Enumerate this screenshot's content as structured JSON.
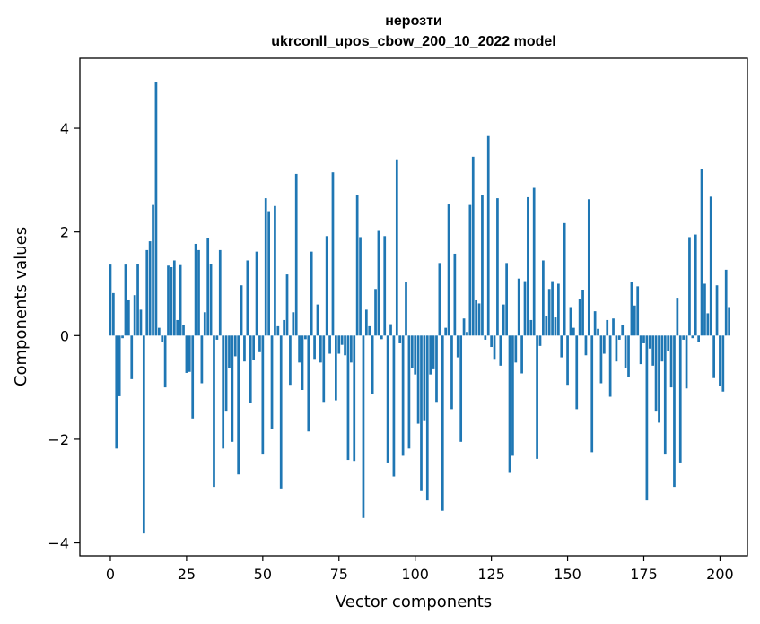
{
  "chart_data": {
    "type": "bar",
    "title": "нерозти",
    "subtitle": "ukrconll_upos_cbow_200_10_2022 model",
    "xlabel": "Vector components",
    "ylabel": "Components values",
    "xlim": [
      -10,
      209
    ],
    "ylim": [
      -4.25,
      5.35
    ],
    "xticks": [
      0,
      25,
      50,
      75,
      100,
      125,
      150,
      175,
      200
    ],
    "xtick_labels": [
      "0",
      "25",
      "50",
      "75",
      "100",
      "125",
      "150",
      "175",
      "200"
    ],
    "yticks": [
      -4,
      -2,
      0,
      2,
      4
    ],
    "ytick_labels": [
      "−4",
      "−2",
      "0",
      "2",
      "4"
    ],
    "grid": false,
    "bar_color": "#1f77b4",
    "values": [
      1.37,
      0.82,
      -2.18,
      -1.17,
      -0.05,
      1.37,
      0.68,
      -0.84,
      0.78,
      1.38,
      0.5,
      -3.82,
      1.65,
      1.82,
      2.52,
      4.9,
      0.15,
      -0.12,
      -1.0,
      1.35,
      1.32,
      1.45,
      0.3,
      1.36,
      0.2,
      -0.72,
      -0.7,
      -1.6,
      1.77,
      1.65,
      -0.92,
      0.45,
      1.88,
      1.38,
      -2.92,
      -0.08,
      1.65,
      -2.18,
      -1.45,
      -0.62,
      -2.05,
      -0.4,
      -2.68,
      0.97,
      -0.5,
      1.45,
      -1.3,
      -0.47,
      1.62,
      -0.32,
      -2.28,
      2.65,
      2.4,
      -1.8,
      2.5,
      0.18,
      -2.95,
      0.3,
      1.18,
      -0.95,
      0.45,
      3.12,
      -0.52,
      -1.05,
      -0.07,
      -1.85,
      1.62,
      -0.45,
      0.6,
      -0.52,
      -1.28,
      1.92,
      -0.35,
      3.15,
      -1.25,
      -0.35,
      -0.18,
      -0.38,
      -2.4,
      -0.52,
      -2.42,
      2.72,
      1.9,
      -3.52,
      0.5,
      0.18,
      -1.12,
      0.9,
      2.02,
      -0.07,
      1.92,
      -2.45,
      0.22,
      -2.72,
      3.4,
      -0.15,
      -2.32,
      1.03,
      -2.18,
      -0.62,
      -0.75,
      -1.7,
      -3.0,
      -1.65,
      -3.18,
      -0.75,
      -0.65,
      -1.28,
      1.4,
      -3.38,
      0.15,
      2.53,
      -1.42,
      1.58,
      -0.42,
      -2.05,
      0.33,
      0.07,
      2.52,
      3.45,
      0.68,
      0.62,
      2.72,
      -0.08,
      3.85,
      -0.22,
      -0.45,
      2.65,
      -0.58,
      0.6,
      1.4,
      -2.65,
      -2.32,
      -0.52,
      1.1,
      -0.73,
      1.05,
      2.67,
      0.3,
      2.85,
      -2.38,
      -0.2,
      1.45,
      0.38,
      0.9,
      1.05,
      0.35,
      1.0,
      -0.42,
      2.17,
      -0.95,
      0.55,
      0.15,
      -1.42,
      0.7,
      0.88,
      -0.38,
      2.63,
      -2.25,
      0.47,
      0.13,
      -0.92,
      -0.35,
      0.3,
      -1.18,
      0.33,
      -0.5,
      -0.08,
      0.2,
      -0.62,
      -0.8,
      1.03,
      0.58,
      0.95,
      -0.55,
      -0.15,
      -3.18,
      -0.25,
      -0.58,
      -1.45,
      -1.68,
      -0.5,
      -2.28,
      -0.3,
      -1.0,
      -2.92,
      0.73,
      -2.45,
      -0.08,
      -1.02,
      1.9,
      -0.05,
      1.95,
      -0.12,
      3.22,
      1.0,
      0.43,
      2.68,
      -0.82,
      0.97,
      -0.98,
      -1.08,
      1.27,
      0.55
    ]
  }
}
